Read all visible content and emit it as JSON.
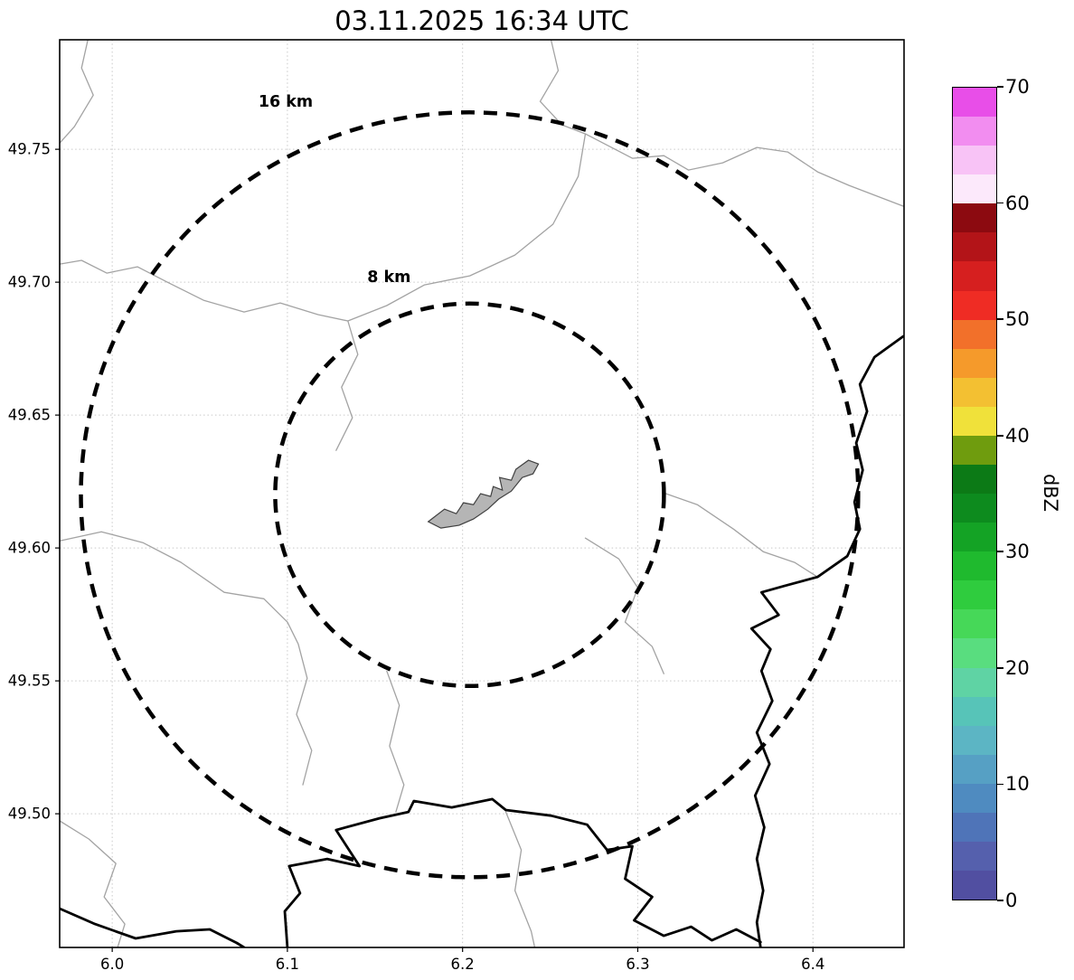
{
  "title": "03.11.2025 16:34 UTC",
  "axes": {
    "xlim": [
      5.97,
      6.452
    ],
    "ylim": [
      49.4497,
      49.7912
    ],
    "x_ticks": [
      "6.0",
      "6.1",
      "6.2",
      "6.3",
      "6.4"
    ],
    "x_tick_values": [
      6.0,
      6.1,
      6.2,
      6.3,
      6.4
    ],
    "y_ticks": [
      "49.75",
      "49.70",
      "49.65",
      "49.60",
      "49.55",
      "49.50"
    ],
    "y_tick_values": [
      49.75,
      49.7,
      49.65,
      49.6,
      49.55,
      49.5
    ],
    "grid": true
  },
  "range_rings": {
    "center": {
      "lon": 6.204,
      "lat": 49.62
    },
    "rings": [
      {
        "label": "8 km",
        "radius_km": 8,
        "label_pos": {
          "lon": 6.158,
          "lat": 49.7
        }
      },
      {
        "label": "16 km",
        "radius_km": 16,
        "label_pos": {
          "lon": 6.099,
          "lat": 49.766
        }
      }
    ]
  },
  "colorbar": {
    "label": "dBZ",
    "min": 0,
    "max": 70,
    "ticks": [
      0,
      10,
      20,
      30,
      40,
      50,
      60,
      70
    ],
    "segment_step": 2.5,
    "colors_bottom_to_top": [
      "#514fa1",
      "#5560ad",
      "#4f74b8",
      "#4f8bc0",
      "#56a0c4",
      "#5cb5c4",
      "#57c4b8",
      "#5fd3a4",
      "#59dd7f",
      "#46d858",
      "#2fcc3e",
      "#1fba2e",
      "#14a325",
      "#0d8b1e",
      "#0c7a16",
      "#6f9c0e",
      "#f0e13a",
      "#f3c032",
      "#f59a2b",
      "#f2702a",
      "#ef2c24",
      "#d61f1f",
      "#b31418",
      "#8c0a10",
      "#fce9fb",
      "#f8c3f6",
      "#f28df0",
      "#e84ee8"
    ]
  },
  "style_colors": {
    "ring": "#000000",
    "city_fill": "#b5b5b5",
    "thin_boundary": "#a3a3a3",
    "thick_border": "#000000",
    "grid": "#c9c9c9"
  },
  "map_features": {
    "city_polygon": [
      [
        6.1804,
        49.6099
      ],
      [
        6.1897,
        49.6146
      ],
      [
        6.1964,
        49.6129
      ],
      [
        6.2005,
        49.617
      ],
      [
        6.2062,
        49.6163
      ],
      [
        6.2103,
        49.6204
      ],
      [
        6.216,
        49.6194
      ],
      [
        6.2175,
        49.6231
      ],
      [
        6.2227,
        49.6218
      ],
      [
        6.2211,
        49.6265
      ],
      [
        6.2278,
        49.6255
      ],
      [
        6.2304,
        49.6296
      ],
      [
        6.2376,
        49.633
      ],
      [
        6.2433,
        49.6316
      ],
      [
        6.2402,
        49.6279
      ],
      [
        6.234,
        49.6265
      ],
      [
        6.2278,
        49.6214
      ],
      [
        6.2206,
        49.6184
      ],
      [
        6.2144,
        49.6146
      ],
      [
        6.2062,
        49.6109
      ],
      [
        6.1979,
        49.6085
      ],
      [
        6.1876,
        49.6075
      ]
    ],
    "thin_boundaries": [
      [
        [
          5.9861,
          49.7912
        ],
        [
          5.9825,
          49.7806
        ],
        [
          5.9892,
          49.7704
        ],
        [
          5.9784,
          49.7585
        ],
        [
          5.9701,
          49.7524
        ]
      ],
      [
        [
          6.2505,
          49.7912
        ],
        [
          6.2546,
          49.7796
        ],
        [
          6.2443,
          49.768
        ],
        [
          6.2567,
          49.7592
        ],
        [
          6.2701,
          49.7558
        ],
        [
          6.266,
          49.7398
        ],
        [
          6.2516,
          49.7218
        ],
        [
          6.2299,
          49.7102
        ],
        [
          6.2041,
          49.7024
        ],
        [
          6.1783,
          49.699
        ],
        [
          6.1567,
          49.6912
        ],
        [
          6.1345,
          49.6854
        ],
        [
          6.1175,
          49.6878
        ],
        [
          6.0959,
          49.6922
        ],
        [
          6.0753,
          49.6888
        ],
        [
          6.0521,
          49.6932
        ],
        [
          6.0314,
          49.7
        ],
        [
          6.0144,
          49.7058
        ],
        [
          5.9969,
          49.7034
        ],
        [
          5.9825,
          49.7082
        ],
        [
          5.9701,
          49.7068
        ]
      ],
      [
        [
          6.2701,
          49.7558
        ],
        [
          6.2969,
          49.7466
        ],
        [
          6.3149,
          49.7476
        ],
        [
          6.3289,
          49.7422
        ],
        [
          6.3485,
          49.7449
        ],
        [
          6.368,
          49.7507
        ],
        [
          6.3856,
          49.749
        ],
        [
          6.4026,
          49.7415
        ],
        [
          6.4206,
          49.7364
        ],
        [
          6.4515,
          49.7286
        ]
      ],
      [
        [
          5.9701,
          49.6027
        ],
        [
          5.9938,
          49.6061
        ],
        [
          6.0175,
          49.602
        ],
        [
          6.0392,
          49.5946
        ],
        [
          6.0639,
          49.5833
        ],
        [
          6.0866,
          49.5809
        ],
        [
          6.1,
          49.5721
        ],
        [
          6.1062,
          49.5639
        ],
        [
          6.1113,
          49.551
        ],
        [
          6.1052,
          49.5374
        ],
        [
          6.1139,
          49.5238
        ],
        [
          6.1088,
          49.5109
        ]
      ],
      [
        [
          6.1567,
          49.5537
        ],
        [
          6.1639,
          49.5408
        ],
        [
          6.1583,
          49.5255
        ],
        [
          6.1665,
          49.5109
        ],
        [
          6.1619,
          49.5007
        ]
      ],
      [
        [
          6.2247,
          49.5007
        ],
        [
          6.2335,
          49.4864
        ],
        [
          6.2299,
          49.4711
        ],
        [
          6.2392,
          49.4558
        ],
        [
          6.2412,
          49.4497
        ]
      ],
      [
        [
          5.9701,
          49.4973
        ],
        [
          5.9866,
          49.4905
        ],
        [
          6.0021,
          49.4813
        ],
        [
          5.9954,
          49.4687
        ],
        [
          6.0072,
          49.4585
        ],
        [
          6.0031,
          49.4497
        ]
      ],
      [
        [
          6.3149,
          49.6207
        ],
        [
          6.334,
          49.6163
        ],
        [
          6.3546,
          49.6071
        ],
        [
          6.3716,
          49.5986
        ],
        [
          6.3897,
          49.5945
        ],
        [
          6.4026,
          49.5891
        ]
      ],
      [
        [
          6.2701,
          49.6037
        ],
        [
          6.2892,
          49.5959
        ],
        [
          6.3,
          49.585
        ],
        [
          6.2928,
          49.5721
        ],
        [
          6.3082,
          49.5629
        ],
        [
          6.3149,
          49.5527
        ]
      ],
      [
        [
          6.1345,
          49.6854
        ],
        [
          6.1402,
          49.6728
        ],
        [
          6.1309,
          49.6605
        ],
        [
          6.1371,
          49.649
        ],
        [
          6.1278,
          49.6367
        ]
      ]
    ],
    "thick_borders": [
      [
        [
          6.4515,
          49.6796
        ],
        [
          6.4351,
          49.6718
        ],
        [
          6.4268,
          49.6616
        ],
        [
          6.4309,
          49.6514
        ],
        [
          6.4247,
          49.6395
        ],
        [
          6.4284,
          49.6293
        ],
        [
          6.4237,
          49.6173
        ],
        [
          6.4268,
          49.6071
        ],
        [
          6.4196,
          49.5969
        ],
        [
          6.4026,
          49.5891
        ],
        [
          6.3835,
          49.5857
        ],
        [
          6.3706,
          49.5833
        ],
        [
          6.3804,
          49.5748
        ],
        [
          6.3649,
          49.5697
        ],
        [
          6.3758,
          49.5619
        ],
        [
          6.3706,
          49.5537
        ],
        [
          6.3768,
          49.5425
        ],
        [
          6.368,
          49.5306
        ],
        [
          6.3752,
          49.5187
        ],
        [
          6.367,
          49.5068
        ],
        [
          6.3722,
          49.4949
        ],
        [
          6.368,
          49.483
        ],
        [
          6.3716,
          49.4711
        ],
        [
          6.368,
          49.4592
        ],
        [
          6.3701,
          49.4497
        ]
      ],
      [
        [
          5.9701,
          49.4643
        ],
        [
          5.9902,
          49.4585
        ],
        [
          6.0134,
          49.4531
        ],
        [
          6.0366,
          49.4558
        ],
        [
          6.0557,
          49.4565
        ],
        [
          6.0711,
          49.4514
        ],
        [
          6.0753,
          49.4497
        ]
      ],
      [
        [
          6.1,
          49.4497
        ],
        [
          6.0985,
          49.4633
        ],
        [
          6.1072,
          49.4701
        ],
        [
          6.101,
          49.4803
        ],
        [
          6.1227,
          49.483
        ],
        [
          6.1412,
          49.4803
        ],
        [
          6.1278,
          49.4939
        ],
        [
          6.1526,
          49.4983
        ],
        [
          6.1691,
          49.5007
        ],
        [
          6.1722,
          49.5048
        ],
        [
          6.1938,
          49.5024
        ],
        [
          6.217,
          49.5055
        ],
        [
          6.2247,
          49.5014
        ],
        [
          6.2505,
          49.4993
        ],
        [
          6.2711,
          49.4959
        ],
        [
          6.2825,
          49.4864
        ],
        [
          6.2969,
          49.4878
        ],
        [
          6.2928,
          49.4755
        ],
        [
          6.3082,
          49.4687
        ],
        [
          6.2979,
          49.4599
        ],
        [
          6.3149,
          49.4541
        ],
        [
          6.3304,
          49.4575
        ],
        [
          6.3423,
          49.4524
        ],
        [
          6.3562,
          49.4565
        ],
        [
          6.3701,
          49.4517
        ]
      ]
    ]
  },
  "chart_data": {
    "type": "heatmap",
    "title": "03.11.2025 16:34 UTC",
    "xlabel": "",
    "ylabel": "",
    "x_axis": {
      "ticks": [
        6.0,
        6.1,
        6.2,
        6.3,
        6.4
      ],
      "range": [
        5.97,
        6.452
      ]
    },
    "y_axis": {
      "ticks": [
        49.5,
        49.55,
        49.6,
        49.65,
        49.7,
        49.75
      ],
      "range": [
        49.4497,
        49.7912
      ]
    },
    "colorbar": {
      "label": "dBZ",
      "range": [
        0,
        70
      ],
      "ticks": [
        0,
        10,
        20,
        30,
        40,
        50,
        60,
        70
      ]
    },
    "values": [],
    "annotations": [
      {
        "text": "8 km",
        "meaning": "8 km radar range ring",
        "center": [
          6.204,
          49.62
        ]
      },
      {
        "text": "16 km",
        "meaning": "16 km radar range ring",
        "center": [
          6.204,
          49.62
        ]
      }
    ],
    "grid": true,
    "note": "No reflectivity echoes are visible on the map; base map shows administrative boundaries, national border rivers and a gray city polygon near the ring center."
  }
}
